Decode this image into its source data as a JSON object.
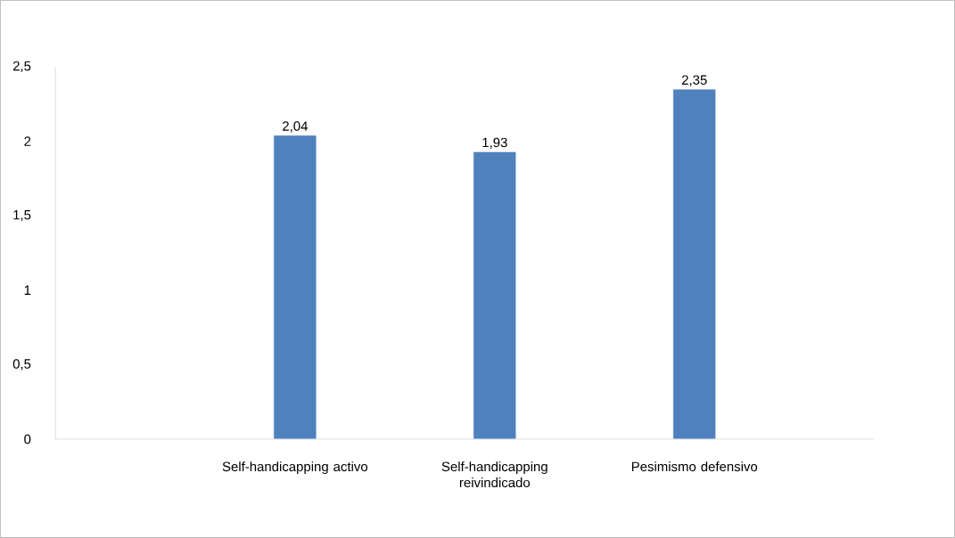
{
  "chart_data": {
    "type": "bar",
    "categories": [
      null,
      "Self-handicapping activo",
      "Self-handicapping reivindicado",
      "Pesimismo defensivo"
    ],
    "values": [
      null,
      2.04,
      1.93,
      2.35
    ],
    "value_labels": [
      null,
      "2,04",
      "1,93",
      "2,35"
    ],
    "color": "#4f81bd",
    "ylim": [
      0,
      2.5
    ],
    "yticks": [
      0,
      {
        "value": 0.5,
        "label": "0,5"
      },
      1,
      {
        "value": 1.5,
        "label": "1,5"
      },
      2,
      {
        "value": 2.5,
        "label": "2,5"
      }
    ],
    "grid": false
  }
}
